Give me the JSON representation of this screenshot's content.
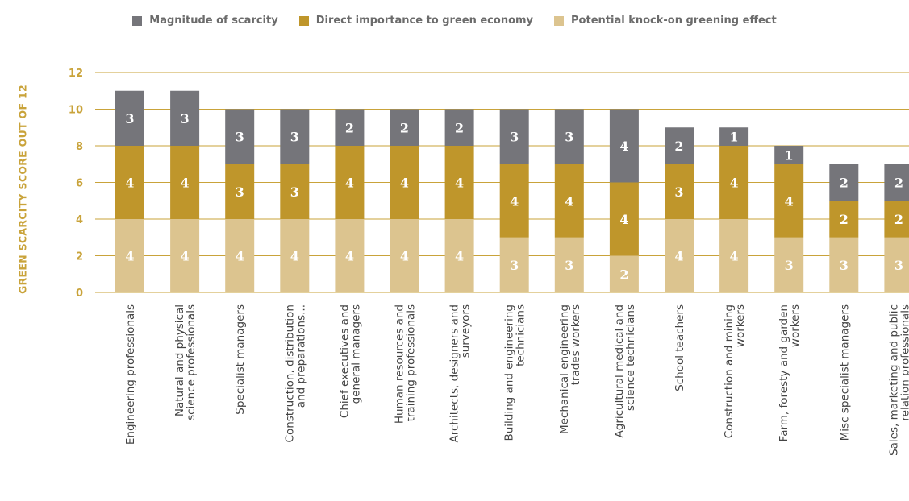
{
  "chart_data": {
    "type": "bar",
    "stacked": true,
    "ylabel": "GREEN SCARCITY SCORE OUT OF 12",
    "xlabel": "",
    "ylim": [
      0,
      12
    ],
    "yticks": [
      "0",
      "2",
      "4",
      "6",
      "8",
      "10",
      "12"
    ],
    "grid": true,
    "legend_position": "top",
    "categories": [
      [
        "Engineering professionals"
      ],
      [
        "Natural and physical",
        "science professionals"
      ],
      [
        "Specialist managers"
      ],
      [
        "Construction, distribution",
        "and preparations..."
      ],
      [
        "Chief executives and",
        "general managers"
      ],
      [
        "Human resources and",
        "training professionals"
      ],
      [
        "Architects, designers and",
        "surveyors"
      ],
      [
        "Building and engineering",
        "technicians"
      ],
      [
        "Mechanical engineering",
        "trades workers"
      ],
      [
        "Agricultural medical and",
        "science technicians"
      ],
      [
        "School teachers"
      ],
      [
        "Construction and mining",
        "workers"
      ],
      [
        "Farm, foresty and garden",
        "workers"
      ],
      [
        "Misc specialist managers"
      ],
      [
        "Sales, marketing and public",
        "relation professionals"
      ]
    ],
    "series": [
      {
        "name": "Potential knock-on greening effect",
        "color": "#dcc48f",
        "values": [
          4,
          4,
          4,
          4,
          4,
          4,
          4,
          3,
          3,
          2,
          4,
          4,
          3,
          3,
          3
        ]
      },
      {
        "name": "Direct importance to green economy",
        "color": "#bf962b",
        "values": [
          4,
          4,
          3,
          3,
          4,
          4,
          4,
          4,
          4,
          4,
          3,
          4,
          4,
          2,
          2
        ]
      },
      {
        "name": "Magnitude of scarcity",
        "color": "#75757a",
        "values": [
          3,
          3,
          3,
          3,
          2,
          2,
          2,
          3,
          3,
          4,
          2,
          1,
          1,
          2,
          2
        ]
      }
    ],
    "legend_order": [
      2,
      1,
      0
    ]
  },
  "colors": {
    "axis_text": "#c9a33a",
    "grid": "#c9a33a",
    "category_text": "#444444"
  }
}
